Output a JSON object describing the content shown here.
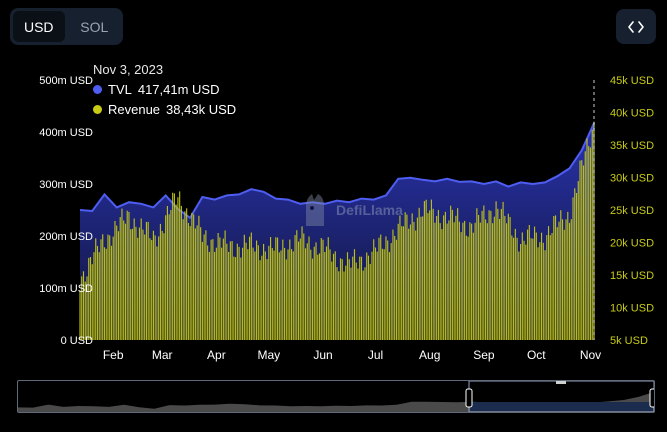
{
  "currency_toggle": {
    "options": [
      {
        "label": "USD",
        "active": true
      },
      {
        "label": "SOL",
        "active": false
      }
    ]
  },
  "embed_button": {
    "icon": "code-brackets-icon"
  },
  "tooltip": {
    "date": "Nov 3, 2023",
    "rows": [
      {
        "name": "TVL",
        "value": "417,41m USD",
        "color": "#4f5ef2"
      },
      {
        "name": "Revenue",
        "value": "38,43k USD",
        "color": "#c8cc14"
      }
    ]
  },
  "watermark": {
    "text": "DefiLlama",
    "icon": "llama-logo-icon"
  },
  "colors": {
    "tvl": "#4f5ef2",
    "tvl_fill_top": "#2b35b8",
    "tvl_fill_bottom": "#111536",
    "revenue": "#c8cc14",
    "axis_text": "#ffffff",
    "brush_fill": "#4a4a4a",
    "brush_selected": "#1c2c4e"
  },
  "chart_data": {
    "type": "bar+area",
    "x_start": "2023-01-13",
    "x_end": "2023-11-03",
    "x_tick_labels": [
      "Feb",
      "Mar",
      "Apr",
      "May",
      "Jun",
      "Jul",
      "Aug",
      "Sep",
      "Oct",
      "Nov"
    ],
    "y_left": {
      "ticks": [
        "0 USD",
        "100m USD",
        "200m USD",
        "300m USD",
        "400m USD",
        "500m USD"
      ],
      "range": [
        0,
        500
      ]
    },
    "y_right": {
      "ticks": [
        "5k USD",
        "10k USD",
        "15k USD",
        "20k USD",
        "25k USD",
        "30k USD",
        "35k USD",
        "40k USD",
        "45k USD"
      ],
      "range": [
        5,
        45
      ]
    },
    "grid": false,
    "legend": "tooltip top-left",
    "series": [
      {
        "name": "TVL",
        "axis": "left",
        "kind": "area",
        "x": [
          "2023-01-13",
          "2023-01-20",
          "2023-01-27",
          "2023-02-03",
          "2023-02-10",
          "2023-02-17",
          "2023-02-24",
          "2023-03-03",
          "2023-03-10",
          "2023-03-17",
          "2023-03-24",
          "2023-03-31",
          "2023-04-07",
          "2023-04-14",
          "2023-04-21",
          "2023-04-28",
          "2023-05-05",
          "2023-05-12",
          "2023-05-19",
          "2023-05-26",
          "2023-06-02",
          "2023-06-09",
          "2023-06-16",
          "2023-06-23",
          "2023-06-30",
          "2023-07-07",
          "2023-07-14",
          "2023-07-21",
          "2023-07-28",
          "2023-08-04",
          "2023-08-11",
          "2023-08-18",
          "2023-08-25",
          "2023-09-01",
          "2023-09-08",
          "2023-09-15",
          "2023-09-22",
          "2023-09-29",
          "2023-10-06",
          "2023-10-13",
          "2023-10-20",
          "2023-10-27",
          "2023-11-03"
        ],
        "values": [
          250,
          248,
          280,
          255,
          265,
          262,
          255,
          278,
          252,
          235,
          275,
          270,
          278,
          280,
          290,
          285,
          272,
          270,
          262,
          265,
          262,
          268,
          265,
          272,
          270,
          278,
          310,
          312,
          308,
          305,
          310,
          304,
          305,
          300,
          305,
          295,
          303,
          300,
          303,
          315,
          330,
          365,
          417
        ]
      },
      {
        "name": "Revenue",
        "axis": "right",
        "kind": "bar",
        "x": [
          "2023-01-13",
          "2023-01-27",
          "2023-02-10",
          "2023-02-24",
          "2023-03-10",
          "2023-03-24",
          "2023-04-07",
          "2023-04-21",
          "2023-05-05",
          "2023-05-19",
          "2023-06-02",
          "2023-06-16",
          "2023-06-30",
          "2023-07-14",
          "2023-07-28",
          "2023-08-11",
          "2023-08-25",
          "2023-09-08",
          "2023-09-22",
          "2023-10-06",
          "2023-10-20",
          "2023-11-03"
        ],
        "values": [
          14.5,
          20.5,
          24.0,
          20.5,
          27.0,
          21.0,
          19.5,
          19.5,
          19.0,
          20.5,
          19.0,
          16.5,
          18.5,
          22.0,
          25.0,
          24.0,
          22.5,
          25.5,
          20.5,
          21.0,
          24.5,
          38.4
        ]
      }
    ]
  }
}
